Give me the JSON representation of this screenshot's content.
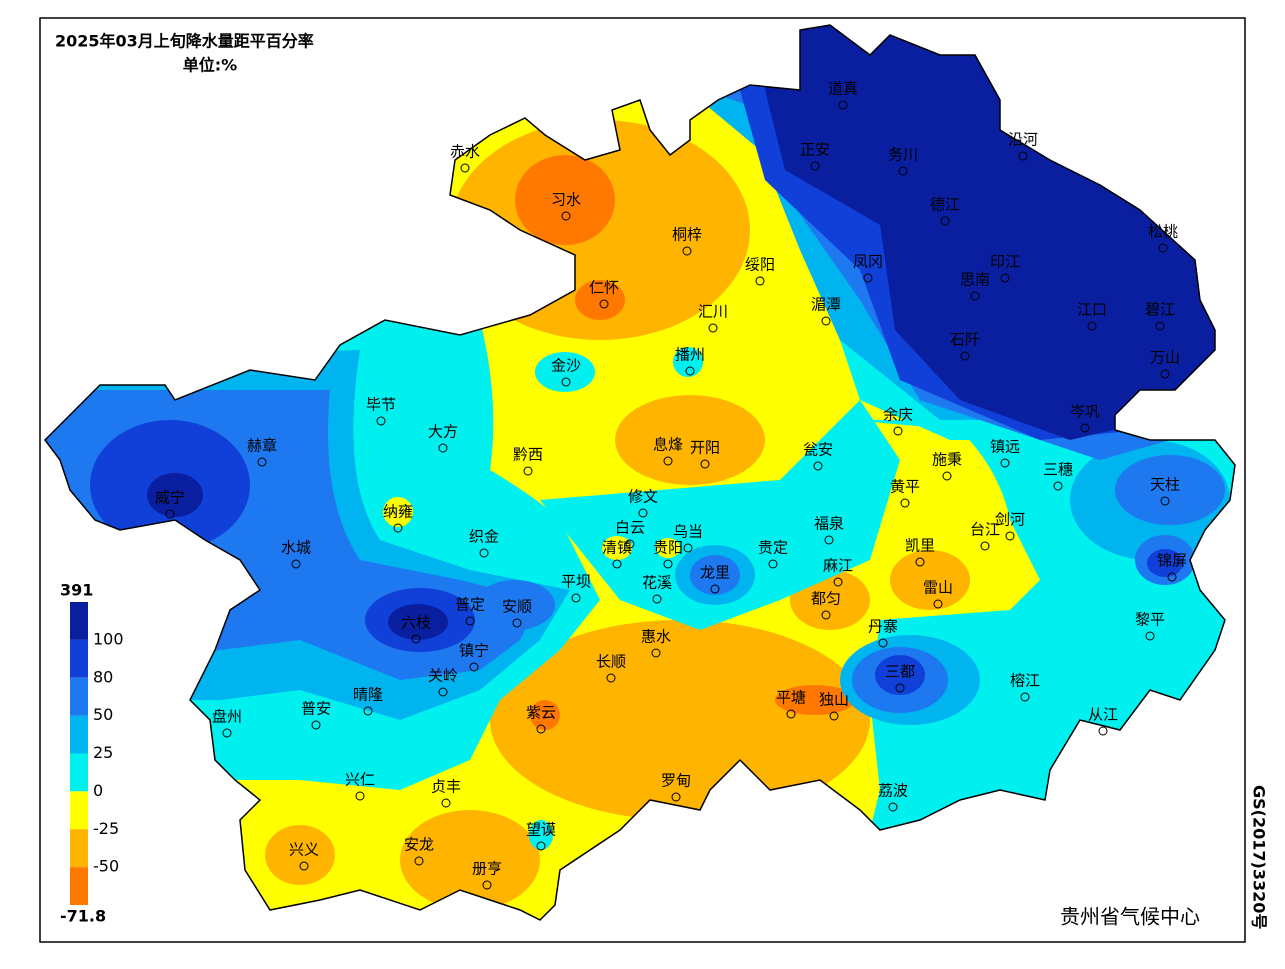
{
  "title": "2025年03月上旬降水量距平百分率",
  "unit": "单位:%",
  "legend": {
    "ticks": [
      391,
      100,
      80,
      50,
      25,
      0,
      -25,
      -50,
      -71.8
    ],
    "colors": [
      "#0a1fa0",
      "#1040d8",
      "#1e78f0",
      "#00b4f0",
      "#00f0f0",
      "#ffff00",
      "#ffb400",
      "#ff7800"
    ]
  },
  "stations": [
    "赤水",
    "习水",
    "桐梓",
    "绥阳",
    "仁怀",
    "汇川",
    "道真",
    "正安",
    "务川",
    "沿河",
    "德江",
    "凤冈",
    "思南",
    "印江",
    "松桃",
    "湄潭",
    "江口",
    "碧江",
    "石阡",
    "万山",
    "金沙",
    "播州",
    "毕节",
    "大方",
    "赫章",
    "黔西",
    "息烽",
    "开阳",
    "瓮安",
    "余庆",
    "岑巩",
    "镇远",
    "施秉",
    "三穗",
    "天柱",
    "黄平",
    "威宁",
    "纳雍",
    "修文",
    "白云",
    "乌当",
    "织金",
    "水城",
    "清镇",
    "贵阳",
    "龙里",
    "贵定",
    "福泉",
    "凯里",
    "台江",
    "剑河",
    "锦屏",
    "麻江",
    "平坝",
    "花溪",
    "都匀",
    "雷山",
    "黎平",
    "普定",
    "安顺",
    "六枝",
    "丹寨",
    "镇宁",
    "惠水",
    "长顺",
    "三都",
    "关岭",
    "晴隆",
    "普安",
    "盘州",
    "紫云",
    "平塘",
    "独山",
    "榕江",
    "从江",
    "兴仁",
    "贞丰",
    "罗甸",
    "荔波",
    "望谟",
    "兴义",
    "安龙",
    "册亨"
  ],
  "footer": "贵州省气候中心",
  "approval": "GS(2017)3320号"
}
